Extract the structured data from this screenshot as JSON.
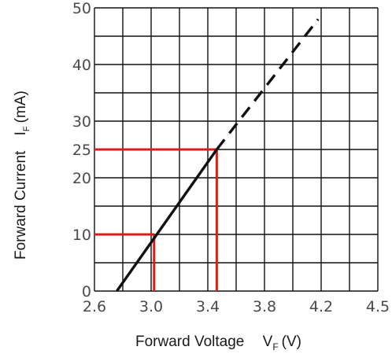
{
  "chart_data": {
    "type": "line",
    "title": "",
    "xlabel": {
      "main": "Forward Voltage",
      "symbol": "V",
      "subscript": "F",
      "unit": "(V)"
    },
    "ylabel": {
      "main": "Forward Current",
      "symbol": "I",
      "subscript": "F",
      "unit": "(mA)"
    },
    "xlim": [
      2.6,
      4.5
    ],
    "ylim": [
      0,
      50
    ],
    "x_tick_labels": [
      "2.6",
      "3.0",
      "3.4",
      "3.8",
      "4.2",
      "4.5"
    ],
    "y_tick_labels": [
      "0",
      "10",
      "20",
      "25",
      "30",
      "40",
      "50"
    ],
    "grid": true,
    "series": [
      {
        "style": "solid",
        "color": "#111111",
        "x": [
          2.75,
          3.42
        ],
        "y": [
          0,
          25
        ]
      },
      {
        "style": "dashed",
        "color": "#111111",
        "x": [
          3.42,
          4.1
        ],
        "y": [
          25,
          48
        ]
      }
    ],
    "reference_lines": [
      {
        "color": "#dd1c1c",
        "x": 3.0,
        "y": 10
      },
      {
        "color": "#dd1c1c",
        "x": 3.42,
        "y": 25
      }
    ]
  }
}
